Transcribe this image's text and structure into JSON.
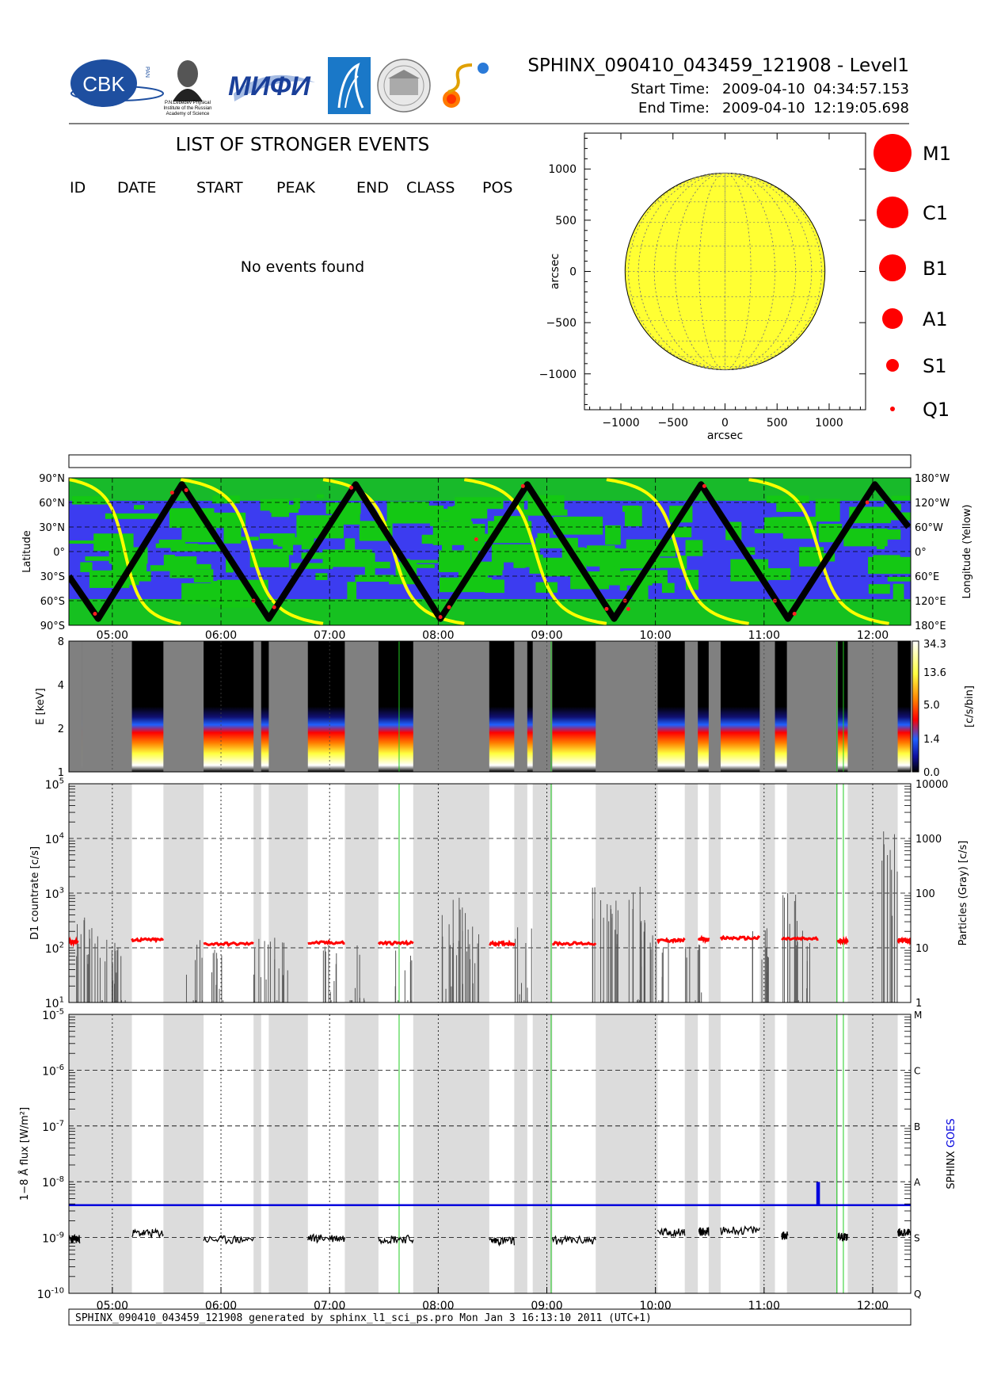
{
  "header": {
    "title": "SPHINX_090410_043459_121908 - Level1",
    "start_label": "Start Time:",
    "start_date": "2009-04-10",
    "start_time": "04:34:57.153",
    "end_label": "End Time:",
    "end_date": "2009-04-10",
    "end_time": "12:19:05.698"
  },
  "logos": {
    "cbk": "CBK",
    "cbk_sub": "PAN",
    "lebedev_caption": [
      "P.N.Lebedev Physical",
      "Institute of the Russian",
      "Academy of Science"
    ],
    "mifi": "МИФИ"
  },
  "events": {
    "title": "LIST OF STRONGER EVENTS",
    "columns": [
      "ID",
      "DATE",
      "START",
      "PEAK",
      "END",
      "CLASS",
      "POS"
    ],
    "empty_message": "No events found"
  },
  "footer": {
    "text": "SPHINX_090410_043459_121908 generated by sphinx_l1_sci_ps.pro Mon Jan  3 16:13:10 2011 (UTC+1)"
  },
  "colors": {
    "sun": "#ffff33",
    "flare_marker": "#ff0000",
    "orbit_ocean": "#3c3cf0",
    "orbit_land": "#14c814",
    "orbit_longitude": "#ffff00",
    "sphinx_line": "#000000",
    "goes_line": "#0000dd",
    "shading": "#dcdcdc"
  },
  "chart_data": [
    {
      "type": "scatter",
      "name": "solar-disk",
      "xlabel": "arcsec",
      "ylabel": "arcsec",
      "xlim": [
        -1350,
        1350
      ],
      "ylim": [
        -1350,
        1350
      ],
      "xticks": [
        -1000,
        -500,
        0,
        500,
        1000
      ],
      "yticks": [
        -1000,
        -500,
        0,
        500,
        1000
      ],
      "xtick_labels": [
        "−1000",
        "−500",
        "0",
        "500",
        "1000"
      ],
      "ytick_labels": [
        "−1000",
        "−500",
        "0",
        "500",
        "1000"
      ],
      "disk_radius": 960,
      "points": [],
      "legend": [
        {
          "label": "M1",
          "size": 5
        },
        {
          "label": "C1",
          "size": 4
        },
        {
          "label": "B1",
          "size": 3
        },
        {
          "label": "A1",
          "size": 2
        },
        {
          "label": "S1",
          "size": 1
        },
        {
          "label": "Q1",
          "size": 0
        }
      ]
    },
    {
      "type": "line",
      "name": "orbit-latitude-longitude",
      "ylabel": "Latitude",
      "ylabel_right": "Longitude (Yellow)",
      "xlim": [
        4.6,
        12.35
      ],
      "ylim": [
        -90,
        90
      ],
      "yticks": [
        90,
        60,
        30,
        0,
        -30,
        -60,
        -90
      ],
      "ytick_labels": [
        "90°N",
        "60°N",
        "30°N",
        "0°",
        "30°S",
        "60°S",
        "90°S"
      ],
      "ytick_labels_right": [
        "180°W",
        "120°W",
        "60°W",
        "0°",
        "60°E",
        "120°E",
        "180°E"
      ],
      "latitude_turns": [
        [
          4.6,
          -30
        ],
        [
          4.87,
          -82
        ],
        [
          5.64,
          82
        ],
        [
          6.44,
          -82
        ],
        [
          7.24,
          82
        ],
        [
          8.02,
          -82
        ],
        [
          8.82,
          82
        ],
        [
          9.62,
          -82
        ],
        [
          10.42,
          82
        ],
        [
          11.22,
          -82
        ],
        [
          12.02,
          82
        ],
        [
          12.33,
          30
        ]
      ],
      "longitude_wraps": [
        4.6,
        5.63,
        6.94,
        8.24,
        9.55,
        10.86,
        12.15
      ],
      "flare_dots": [
        [
          4.84,
          -76
        ],
        [
          5.55,
          72
        ],
        [
          5.68,
          75
        ],
        [
          6.3,
          -60
        ],
        [
          6.49,
          -68
        ],
        [
          7.2,
          78
        ],
        [
          8.02,
          -80
        ],
        [
          8.35,
          15
        ],
        [
          8.1,
          -68
        ],
        [
          8.78,
          80
        ],
        [
          9.55,
          -70
        ],
        [
          9.75,
          -70
        ],
        [
          9.72,
          -60
        ],
        [
          10.45,
          80
        ],
        [
          11.1,
          -60
        ],
        [
          11.28,
          -76
        ],
        [
          11.95,
          60
        ]
      ]
    },
    {
      "type": "heatmap",
      "name": "energy-spectrogram",
      "ylabel": "E [keV]",
      "colorbar_label": "[c/s/bin]",
      "xlim": [
        4.6,
        12.35
      ],
      "ylim": [
        1,
        8
      ],
      "yticks": [
        1,
        2,
        4,
        8
      ],
      "ytick_labels": [
        "1",
        "2",
        "4",
        "8"
      ],
      "colorbar_ticks": [
        "0.0",
        "1.4",
        "5.0",
        "13.6",
        "34.3"
      ]
    },
    {
      "type": "line",
      "name": "d1-countrate",
      "ylabel": "D1 countrate [c/s]",
      "ylabel_right": "Particles (Gray) [c/s]",
      "xlim": [
        4.6,
        12.35
      ],
      "ylim": [
        10,
        100000
      ],
      "yscale": "log",
      "yticks": [
        10,
        100,
        1000,
        10000,
        100000
      ],
      "ytick_labels": [
        "10^1",
        "10^2",
        "10^3",
        "10^4",
        "10^5"
      ],
      "ytick_labels_right": [
        "1",
        "10",
        "100",
        "1000",
        "10000"
      ],
      "red_segments": [
        {
          "x": [
            4.6,
            4.68
          ],
          "y": 130
        },
        {
          "x": [
            5.18,
            5.47
          ],
          "y": 140
        },
        {
          "x": [
            5.84,
            6.3
          ],
          "y": 118
        },
        {
          "x": [
            6.8,
            7.14
          ],
          "y": 124
        },
        {
          "x": [
            7.45,
            7.77
          ],
          "y": 122
        },
        {
          "x": [
            8.47,
            8.7
          ],
          "y": 120
        },
        {
          "x": [
            9.05,
            9.45
          ],
          "y": 120
        },
        {
          "x": [
            10.02,
            10.27
          ],
          "y": 136
        },
        {
          "x": [
            10.4,
            10.49
          ],
          "y": 144
        },
        {
          "x": [
            10.6,
            10.96
          ],
          "y": 150
        },
        {
          "x": [
            11.16,
            11.5
          ],
          "y": 146
        },
        {
          "x": [
            11.68,
            11.77
          ],
          "y": 134
        },
        {
          "x": [
            12.23,
            12.35
          ],
          "y": 136
        }
      ],
      "particle_peaks": [
        [
          4.72,
          420
        ],
        [
          4.85,
          320
        ],
        [
          4.98,
          170
        ],
        [
          5.05,
          120
        ],
        [
          5.75,
          210
        ],
        [
          5.95,
          160
        ],
        [
          6.38,
          150
        ],
        [
          6.55,
          180
        ],
        [
          7.01,
          140
        ],
        [
          7.25,
          170
        ],
        [
          7.68,
          95
        ],
        [
          8.1,
          800
        ],
        [
          8.2,
          920
        ],
        [
          8.3,
          270
        ],
        [
          8.78,
          240
        ],
        [
          9.5,
          1900
        ],
        [
          9.65,
          820
        ],
        [
          9.83,
          1600
        ],
        [
          9.9,
          380
        ],
        [
          10.05,
          170
        ],
        [
          10.35,
          160
        ],
        [
          10.97,
          230
        ],
        [
          11.24,
          1500
        ],
        [
          11.35,
          360
        ],
        [
          12.15,
          14000
        ]
      ]
    },
    {
      "type": "line",
      "name": "xray-flux",
      "ylabel": "1−8 Å flux [W/m²]",
      "ylabel_right": [
        "SPHINX",
        "GOES"
      ],
      "xlabel": "",
      "xlim": [
        4.6,
        12.35
      ],
      "ylim": [
        1e-10,
        1e-05
      ],
      "yscale": "log",
      "yticks": [
        1e-10,
        1e-09,
        1e-08,
        1e-07,
        1e-06,
        1e-05
      ],
      "ytick_labels": [
        "10^-10",
        "10^-9",
        "10^-8",
        "10^-7",
        "10^-6",
        "10^-5"
      ],
      "class_labels": [
        "Q",
        "S",
        "A",
        "B",
        "C",
        "M"
      ],
      "xticks": [
        5,
        6,
        7,
        8,
        9,
        10,
        11,
        12
      ],
      "xtick_labels": [
        "05:00",
        "06:00",
        "07:00",
        "08:00",
        "09:00",
        "10:00",
        "11:00",
        "12:00"
      ],
      "series": [
        {
          "name": "SPHINX",
          "segments": [
            {
              "x": [
                4.6,
                4.7
              ],
              "y": 9.5e-10
            },
            {
              "x": [
                5.18,
                5.47
              ],
              "y": 1.2e-09
            },
            {
              "x": [
                5.84,
                6.3
              ],
              "y": 9.2e-10
            },
            {
              "x": [
                6.8,
                7.14
              ],
              "y": 9.8e-10
            },
            {
              "x": [
                7.45,
                7.77
              ],
              "y": 9.5e-10
            },
            {
              "x": [
                8.47,
                8.7
              ],
              "y": 8.8e-10
            },
            {
              "x": [
                9.05,
                9.45
              ],
              "y": 9e-10
            },
            {
              "x": [
                10.02,
                10.27
              ],
              "y": 1.25e-09
            },
            {
              "x": [
                10.4,
                10.49
              ],
              "y": 1.3e-09
            },
            {
              "x": [
                10.6,
                10.96
              ],
              "y": 1.35e-09
            },
            {
              "x": [
                11.16,
                11.22
              ],
              "y": 1.1e-09
            },
            {
              "x": [
                11.68,
                11.77
              ],
              "y": 1.05e-09
            },
            {
              "x": [
                12.23,
                12.35
              ],
              "y": 1.25e-09
            }
          ]
        },
        {
          "name": "GOES",
          "base": 3.8e-09,
          "spike": {
            "x": 11.5,
            "y": 9.5e-09
          }
        }
      ]
    }
  ],
  "time_axis": {
    "shaded_bands": [
      [
        4.72,
        5.18
      ],
      [
        5.47,
        5.84
      ],
      [
        6.3,
        6.37
      ],
      [
        6.44,
        6.8
      ],
      [
        7.14,
        7.45
      ],
      [
        7.77,
        8.47
      ],
      [
        8.7,
        8.82
      ],
      [
        8.87,
        9.05
      ],
      [
        9.45,
        10.02
      ],
      [
        10.27,
        10.39
      ],
      [
        10.49,
        10.6
      ],
      [
        10.96,
        11.1
      ],
      [
        11.21,
        11.68
      ],
      [
        11.77,
        12.23
      ]
    ],
    "green_lines": [
      7.64,
      9.04,
      11.67,
      11.73
    ]
  }
}
